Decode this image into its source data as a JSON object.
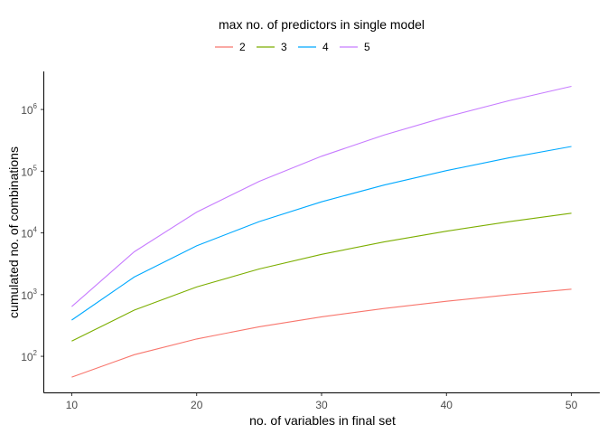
{
  "chart_data": {
    "type": "line",
    "title": "",
    "xlabel": "no. of variables in final set",
    "ylabel": "cumulated no. of combinations",
    "y_scale": "log10",
    "x_ticks": [
      10,
      20,
      30,
      40,
      50
    ],
    "y_ticks": [
      {
        "value": 100,
        "base": "10",
        "exp": "2"
      },
      {
        "value": 1000,
        "base": "10",
        "exp": "3"
      },
      {
        "value": 10000,
        "base": "10",
        "exp": "4"
      },
      {
        "value": 100000,
        "base": "10",
        "exp": "5"
      },
      {
        "value": 1000000,
        "base": "10",
        "exp": "6"
      }
    ],
    "xlim": [
      7.8,
      52.2
    ],
    "ylim": [
      26,
      4000000
    ],
    "grid": false,
    "legend": {
      "title": "max no. of predictors in single model",
      "placement": "top"
    },
    "x": [
      10,
      15,
      20,
      25,
      30,
      35,
      40,
      45,
      50
    ],
    "series": [
      {
        "name": "2",
        "color": "#F8766D",
        "values": [
          46,
          106,
          191,
          301,
          436,
          596,
          781,
          991,
          1226
        ]
      },
      {
        "name": "3",
        "color": "#7CAE00",
        "values": [
          176,
          561,
          1331,
          2601,
          4496,
          7141,
          10661,
          15181,
          20826
        ]
      },
      {
        "name": "4",
        "color": "#00A9FF",
        "values": [
          386,
          1926,
          6176,
          15251,
          31901,
          59501,
          102051,
          164176,
          251126
        ]
      },
      {
        "name": "5",
        "color": "#C77CFF",
        "values": [
          638,
          4929,
          21680,
          68381,
          174407,
          384143,
          760099,
          1386025,
          2369936
        ]
      }
    ]
  }
}
